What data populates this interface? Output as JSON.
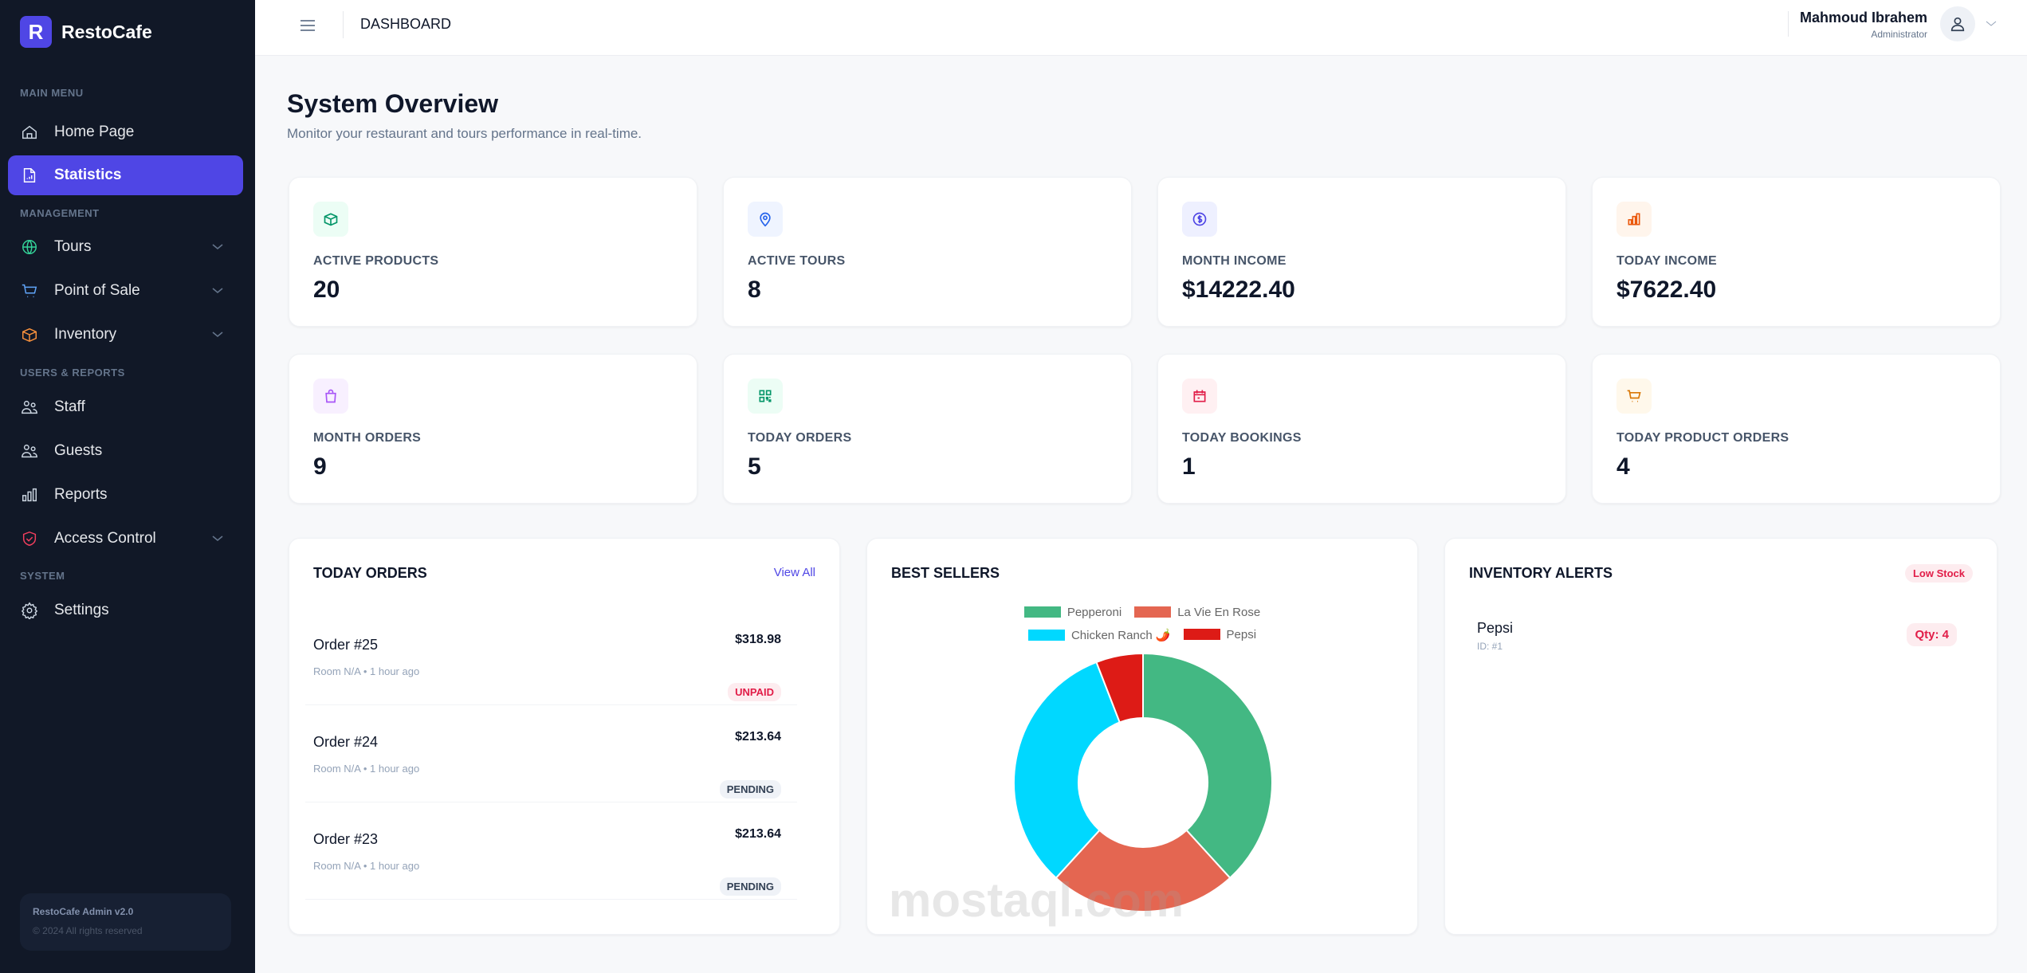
{
  "app": {
    "logo_letter": "R",
    "name": "RestoCafe"
  },
  "sidebar": {
    "sections": [
      "MAIN MENU",
      "MANAGEMENT",
      "USERS & REPORTS",
      "SYSTEM"
    ],
    "items": [
      {
        "label": "Home Page",
        "icon": "home-icon"
      },
      {
        "label": "Statistics",
        "icon": "report-file-icon",
        "active": true
      },
      {
        "label": "Tours",
        "icon": "globe-icon",
        "color": "#34d399"
      },
      {
        "label": "Point of Sale",
        "icon": "cart-icon",
        "color": "#60a5fa"
      },
      {
        "label": "Inventory",
        "icon": "box-icon",
        "color": "#fb923c"
      },
      {
        "label": "Staff",
        "icon": "users-icon"
      },
      {
        "label": "Guests",
        "icon": "users-icon"
      },
      {
        "label": "Reports",
        "icon": "bar-chart-icon"
      },
      {
        "label": "Access Control",
        "icon": "shield-check-icon",
        "color": "#f43f5e"
      },
      {
        "label": "Settings",
        "icon": "gear-icon"
      }
    ],
    "footer": {
      "version": "RestoCafe Admin v2.0",
      "copyright": "© 2024 All rights reserved"
    }
  },
  "header": {
    "title": "DASHBOARD",
    "user_name": "Mahmoud Ibrahem",
    "user_role": "Administrator"
  },
  "page": {
    "title": "System Overview",
    "subtitle": "Monitor your restaurant and tours performance in real-time."
  },
  "stats": [
    {
      "label": "ACTIVE PRODUCTS",
      "value": "20",
      "icon": "box-icon",
      "color": "#059669",
      "bg": "#ecfdf5"
    },
    {
      "label": "ACTIVE TOURS",
      "value": "8",
      "icon": "map-pin-icon",
      "color": "#2563eb",
      "bg": "#eff4ff"
    },
    {
      "label": "MONTH INCOME",
      "value": "$14222.40",
      "icon": "dollar-icon",
      "color": "#4f46e5",
      "bg": "#eef0ff"
    },
    {
      "label": "TODAY INCOME",
      "value": "$7622.40",
      "icon": "bar-chart-icon",
      "color": "#ea580c",
      "bg": "#fff5ec"
    },
    {
      "label": "MONTH ORDERS",
      "value": "9",
      "icon": "shopping-bag-icon",
      "color": "#a855f7",
      "bg": "#f8f0ff"
    },
    {
      "label": "TODAY ORDERS",
      "value": "5",
      "icon": "qr-code-icon",
      "color": "#059669",
      "bg": "#ecfdf5"
    },
    {
      "label": "TODAY BOOKINGS",
      "value": "1",
      "icon": "calendar-icon",
      "color": "#e11d48",
      "bg": "#fff0f2"
    },
    {
      "label": "TODAY PRODUCT ORDERS",
      "value": "4",
      "icon": "cart-icon",
      "color": "#d97706",
      "bg": "#fff8eb"
    }
  ],
  "orders": {
    "title": "TODAY ORDERS",
    "view_all": "View All",
    "items": [
      {
        "name": "Order #25",
        "meta": "Room N/A • 1 hour ago",
        "price": "$318.98",
        "status": "UNPAID"
      },
      {
        "name": "Order #24",
        "meta": "Room N/A • 1 hour ago",
        "price": "$213.64",
        "status": "PENDING"
      },
      {
        "name": "Order #23",
        "meta": "Room N/A • 1 hour ago",
        "price": "$213.64",
        "status": "PENDING"
      }
    ]
  },
  "best_sellers": {
    "title": "BEST SELLERS"
  },
  "chart_data": {
    "type": "pie",
    "donut": true,
    "title": "BEST SELLERS",
    "legend_position": "top",
    "categories": [
      "Pepperoni",
      "La Vie En Rose",
      "Chicken Ranch 🌶️",
      "Pepsi"
    ],
    "values": [
      13,
      8,
      11,
      2
    ],
    "colors": [
      "#43b883",
      "#e46651",
      "#00d8ff",
      "#dd1b16"
    ]
  },
  "inventory": {
    "title": "INVENTORY ALERTS",
    "badge": "Low Stock",
    "items": [
      {
        "name": "Pepsi",
        "id": "ID: #1",
        "qty": "Qty: 4"
      }
    ]
  },
  "watermark": "mostaql.com"
}
